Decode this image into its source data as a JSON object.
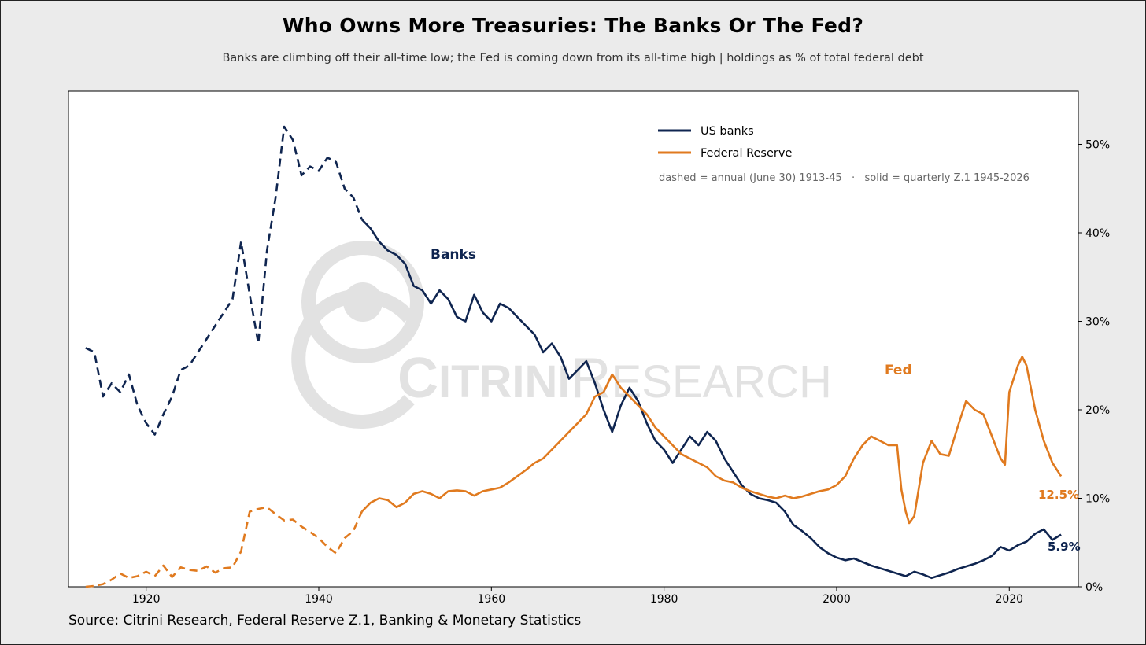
{
  "title": "Who Owns More Treasuries: The Banks Or The Fed?",
  "subtitle": "Banks are climbing off their all-time low; the Fed is coming down from its all-time high  |  holdings as % of total federal debt",
  "source": "Source: Citrini Research, Federal Reserve Z.1, Banking & Monetary Statistics",
  "watermark": "CitriniResearch",
  "colors": {
    "banks": "#0f2550",
    "fed": "#e07a1f",
    "background": "#ebebeb",
    "plot_bg": "#ffffff",
    "watermark": "#e2e2e2"
  },
  "chart_data": {
    "type": "line",
    "title": "Who Owns More Treasuries: The Banks Or The Fed?",
    "xlim": [
      1911,
      2028
    ],
    "ylim": [
      0,
      56
    ],
    "x_ticks": [
      1920,
      1940,
      1960,
      1980,
      2000,
      2020
    ],
    "y_ticks": [
      0,
      10,
      20,
      30,
      40,
      50
    ],
    "y_tick_labels": [
      "0%",
      "10%",
      "20%",
      "30%",
      "40%",
      "50%"
    ],
    "y_axis_side": "right",
    "grid": false,
    "legend_position": "top-right",
    "legend_note": "dashed = annual (June 30) 1913-45   ·   solid = quarterly Z.1 1945-2026",
    "series": [
      {
        "name": "US banks",
        "annotation": "Banks",
        "end_label": "5.9%",
        "annual": [
          [
            1913,
            27
          ],
          [
            1914,
            26.5
          ],
          [
            1915,
            21.5
          ],
          [
            1916,
            23
          ],
          [
            1917,
            22
          ],
          [
            1918,
            24
          ],
          [
            1919,
            20.5
          ],
          [
            1920,
            18.5
          ],
          [
            1921,
            17.2
          ],
          [
            1922,
            19.5
          ],
          [
            1923,
            21.5
          ],
          [
            1924,
            24.5
          ],
          [
            1925,
            25
          ],
          [
            1926,
            26.5
          ],
          [
            1927,
            28
          ],
          [
            1928,
            29.5
          ],
          [
            1929,
            31
          ],
          [
            1930,
            32.5
          ],
          [
            1931,
            39
          ],
          [
            1932,
            33
          ],
          [
            1933,
            27.5
          ],
          [
            1934,
            38
          ],
          [
            1935,
            44
          ],
          [
            1936,
            52
          ],
          [
            1937,
            50.5
          ],
          [
            1938,
            46.5
          ],
          [
            1939,
            47.5
          ],
          [
            1940,
            47
          ],
          [
            1941,
            48.5
          ],
          [
            1942,
            48
          ],
          [
            1943,
            45
          ],
          [
            1944,
            44
          ],
          [
            1945,
            41.5
          ]
        ],
        "quarterly": [
          [
            1945,
            41.5
          ],
          [
            1946,
            40.5
          ],
          [
            1947,
            39
          ],
          [
            1948,
            38
          ],
          [
            1949,
            37.5
          ],
          [
            1950,
            36.5
          ],
          [
            1951,
            34
          ],
          [
            1952,
            33.5
          ],
          [
            1953,
            32
          ],
          [
            1954,
            33.5
          ],
          [
            1955,
            32.5
          ],
          [
            1956,
            30.5
          ],
          [
            1957,
            30
          ],
          [
            1958,
            33
          ],
          [
            1959,
            31
          ],
          [
            1960,
            30
          ],
          [
            1961,
            32
          ],
          [
            1962,
            31.5
          ],
          [
            1963,
            30.5
          ],
          [
            1964,
            29.5
          ],
          [
            1965,
            28.5
          ],
          [
            1966,
            26.5
          ],
          [
            1967,
            27.5
          ],
          [
            1968,
            26
          ],
          [
            1969,
            23.5
          ],
          [
            1970,
            24.5
          ],
          [
            1971,
            25.5
          ],
          [
            1972,
            23
          ],
          [
            1973,
            20
          ],
          [
            1974,
            17.5
          ],
          [
            1975,
            20.5
          ],
          [
            1976,
            22.5
          ],
          [
            1977,
            21
          ],
          [
            1978,
            18.5
          ],
          [
            1979,
            16.5
          ],
          [
            1980,
            15.5
          ],
          [
            1981,
            14
          ],
          [
            1982,
            15.5
          ],
          [
            1983,
            17
          ],
          [
            1984,
            16
          ],
          [
            1985,
            17.5
          ],
          [
            1986,
            16.5
          ],
          [
            1987,
            14.5
          ],
          [
            1988,
            13
          ],
          [
            1989,
            11.5
          ],
          [
            1990,
            10.5
          ],
          [
            1991,
            10
          ],
          [
            1992,
            9.8
          ],
          [
            1993,
            9.5
          ],
          [
            1994,
            8.5
          ],
          [
            1995,
            7
          ],
          [
            1996,
            6.3
          ],
          [
            1997,
            5.5
          ],
          [
            1998,
            4.5
          ],
          [
            1999,
            3.8
          ],
          [
            2000,
            3.3
          ],
          [
            2001,
            3
          ],
          [
            2002,
            3.2
          ],
          [
            2003,
            2.8
          ],
          [
            2004,
            2.4
          ],
          [
            2005,
            2.1
          ],
          [
            2006,
            1.8
          ],
          [
            2007,
            1.5
          ],
          [
            2008,
            1.2
          ],
          [
            2009,
            1.7
          ],
          [
            2010,
            1.4
          ],
          [
            2011,
            1
          ],
          [
            2012,
            1.3
          ],
          [
            2013,
            1.6
          ],
          [
            2014,
            2
          ],
          [
            2015,
            2.3
          ],
          [
            2016,
            2.6
          ],
          [
            2017,
            3
          ],
          [
            2018,
            3.5
          ],
          [
            2019,
            4.5
          ],
          [
            2020,
            4.1
          ],
          [
            2021,
            4.7
          ],
          [
            2022,
            5.1
          ],
          [
            2023,
            6
          ],
          [
            2024,
            6.5
          ],
          [
            2025,
            5.3
          ],
          [
            2026,
            5.9
          ]
        ]
      },
      {
        "name": "Federal Reserve",
        "annotation": "Fed",
        "end_label": "12.5%",
        "annual": [
          [
            1913,
            0
          ],
          [
            1914,
            0.1
          ],
          [
            1915,
            0.3
          ],
          [
            1916,
            0.8
          ],
          [
            1917,
            1.5
          ],
          [
            1918,
            1
          ],
          [
            1919,
            1.2
          ],
          [
            1920,
            1.7
          ],
          [
            1921,
            1.2
          ],
          [
            1922,
            2.4
          ],
          [
            1923,
            1.1
          ],
          [
            1924,
            2.2
          ],
          [
            1925,
            1.9
          ],
          [
            1926,
            1.8
          ],
          [
            1927,
            2.3
          ],
          [
            1928,
            1.6
          ],
          [
            1929,
            2.1
          ],
          [
            1930,
            2.2
          ],
          [
            1931,
            4
          ],
          [
            1932,
            8.5
          ],
          [
            1933,
            8.8
          ],
          [
            1934,
            9
          ],
          [
            1935,
            8.2
          ],
          [
            1936,
            7.5
          ],
          [
            1937,
            7.6
          ],
          [
            1938,
            6.8
          ],
          [
            1939,
            6.2
          ],
          [
            1940,
            5.5
          ],
          [
            1941,
            4.5
          ],
          [
            1942,
            3.8
          ],
          [
            1943,
            5.5
          ],
          [
            1944,
            6.3
          ],
          [
            1945,
            8.5
          ]
        ],
        "quarterly": [
          [
            1945,
            8.5
          ],
          [
            1946,
            9.5
          ],
          [
            1947,
            10
          ],
          [
            1948,
            9.8
          ],
          [
            1949,
            9
          ],
          [
            1950,
            9.5
          ],
          [
            1951,
            10.5
          ],
          [
            1952,
            10.8
          ],
          [
            1953,
            10.5
          ],
          [
            1954,
            10
          ],
          [
            1955,
            10.8
          ],
          [
            1956,
            10.9
          ],
          [
            1957,
            10.8
          ],
          [
            1958,
            10.3
          ],
          [
            1959,
            10.8
          ],
          [
            1960,
            11
          ],
          [
            1961,
            11.2
          ],
          [
            1962,
            11.8
          ],
          [
            1963,
            12.5
          ],
          [
            1964,
            13.2
          ],
          [
            1965,
            14
          ],
          [
            1966,
            14.5
          ],
          [
            1967,
            15.5
          ],
          [
            1968,
            16.5
          ],
          [
            1969,
            17.5
          ],
          [
            1970,
            18.5
          ],
          [
            1971,
            19.5
          ],
          [
            1972,
            21.5
          ],
          [
            1973,
            22
          ],
          [
            1974,
            24
          ],
          [
            1975,
            22.5
          ],
          [
            1976,
            21.5
          ],
          [
            1977,
            20.5
          ],
          [
            1978,
            19.5
          ],
          [
            1979,
            18
          ],
          [
            1980,
            17
          ],
          [
            1981,
            16
          ],
          [
            1982,
            15
          ],
          [
            1983,
            14.5
          ],
          [
            1984,
            14
          ],
          [
            1985,
            13.5
          ],
          [
            1986,
            12.5
          ],
          [
            1987,
            12
          ],
          [
            1988,
            11.8
          ],
          [
            1989,
            11.2
          ],
          [
            1990,
            10.8
          ],
          [
            1991,
            10.5
          ],
          [
            1992,
            10.2
          ],
          [
            1993,
            10
          ],
          [
            1994,
            10.3
          ],
          [
            1995,
            10
          ],
          [
            1996,
            10.2
          ],
          [
            1997,
            10.5
          ],
          [
            1998,
            10.8
          ],
          [
            1999,
            11
          ],
          [
            2000,
            11.5
          ],
          [
            2001,
            12.5
          ],
          [
            2002,
            14.5
          ],
          [
            2003,
            16
          ],
          [
            2004,
            17
          ],
          [
            2005,
            16.5
          ],
          [
            2006,
            16
          ],
          [
            2007,
            16
          ],
          [
            2007.5,
            11
          ],
          [
            2008,
            8.5
          ],
          [
            2008.4,
            7.2
          ],
          [
            2009,
            8
          ],
          [
            2010,
            14
          ],
          [
            2011,
            16.5
          ],
          [
            2012,
            15
          ],
          [
            2013,
            14.8
          ],
          [
            2014,
            18
          ],
          [
            2015,
            21
          ],
          [
            2016,
            20
          ],
          [
            2017,
            19.5
          ],
          [
            2018,
            17
          ],
          [
            2019,
            14.5
          ],
          [
            2019.5,
            13.8
          ],
          [
            2020,
            22
          ],
          [
            2021,
            25
          ],
          [
            2021.5,
            26
          ],
          [
            2022,
            25
          ],
          [
            2023,
            20
          ],
          [
            2024,
            16.5
          ],
          [
            2025,
            14
          ],
          [
            2026,
            12.5
          ]
        ]
      }
    ]
  }
}
